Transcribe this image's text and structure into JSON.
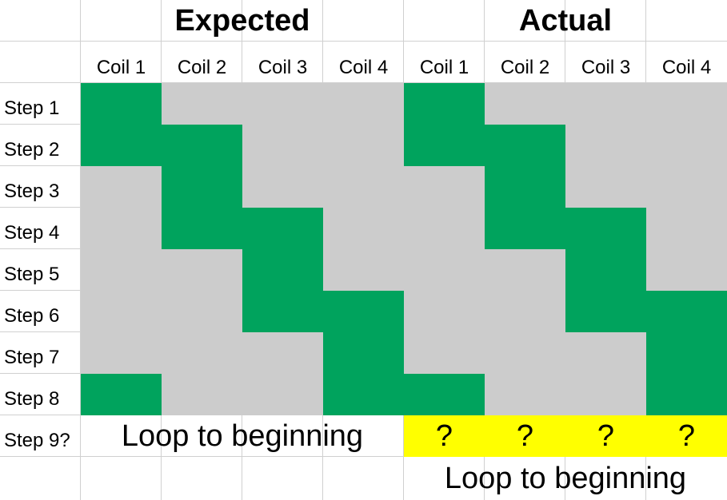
{
  "headers": {
    "expected": "Expected",
    "actual": "Actual"
  },
  "coils": [
    "Coil 1",
    "Coil 2",
    "Coil 3",
    "Coil 4"
  ],
  "steps": [
    "Step 1",
    "Step 2",
    "Step 3",
    "Step 4",
    "Step 5",
    "Step 6",
    "Step 7",
    "Step 8"
  ],
  "step9_label": "Step 9?",
  "expected_grid": [
    [
      1,
      0,
      0,
      0
    ],
    [
      1,
      1,
      0,
      0
    ],
    [
      0,
      1,
      0,
      0
    ],
    [
      0,
      1,
      1,
      0
    ],
    [
      0,
      0,
      1,
      0
    ],
    [
      0,
      0,
      1,
      1
    ],
    [
      0,
      0,
      0,
      1
    ],
    [
      1,
      0,
      0,
      1
    ]
  ],
  "actual_grid": [
    [
      1,
      0,
      0,
      0
    ],
    [
      1,
      1,
      0,
      0
    ],
    [
      0,
      1,
      0,
      0
    ],
    [
      0,
      1,
      1,
      0
    ],
    [
      0,
      0,
      1,
      0
    ],
    [
      0,
      0,
      1,
      1
    ],
    [
      0,
      0,
      0,
      1
    ],
    [
      1,
      0,
      0,
      1
    ]
  ],
  "expected_loop_text": "Loop to beginning",
  "actual_step9": [
    "?",
    "?",
    "?",
    "?"
  ],
  "actual_loop_text": "Loop to beginning",
  "colors": {
    "on": "#00a35d",
    "off": "#cccccc",
    "unknown": "#ffff00",
    "gridline": "#d0d0d0"
  }
}
